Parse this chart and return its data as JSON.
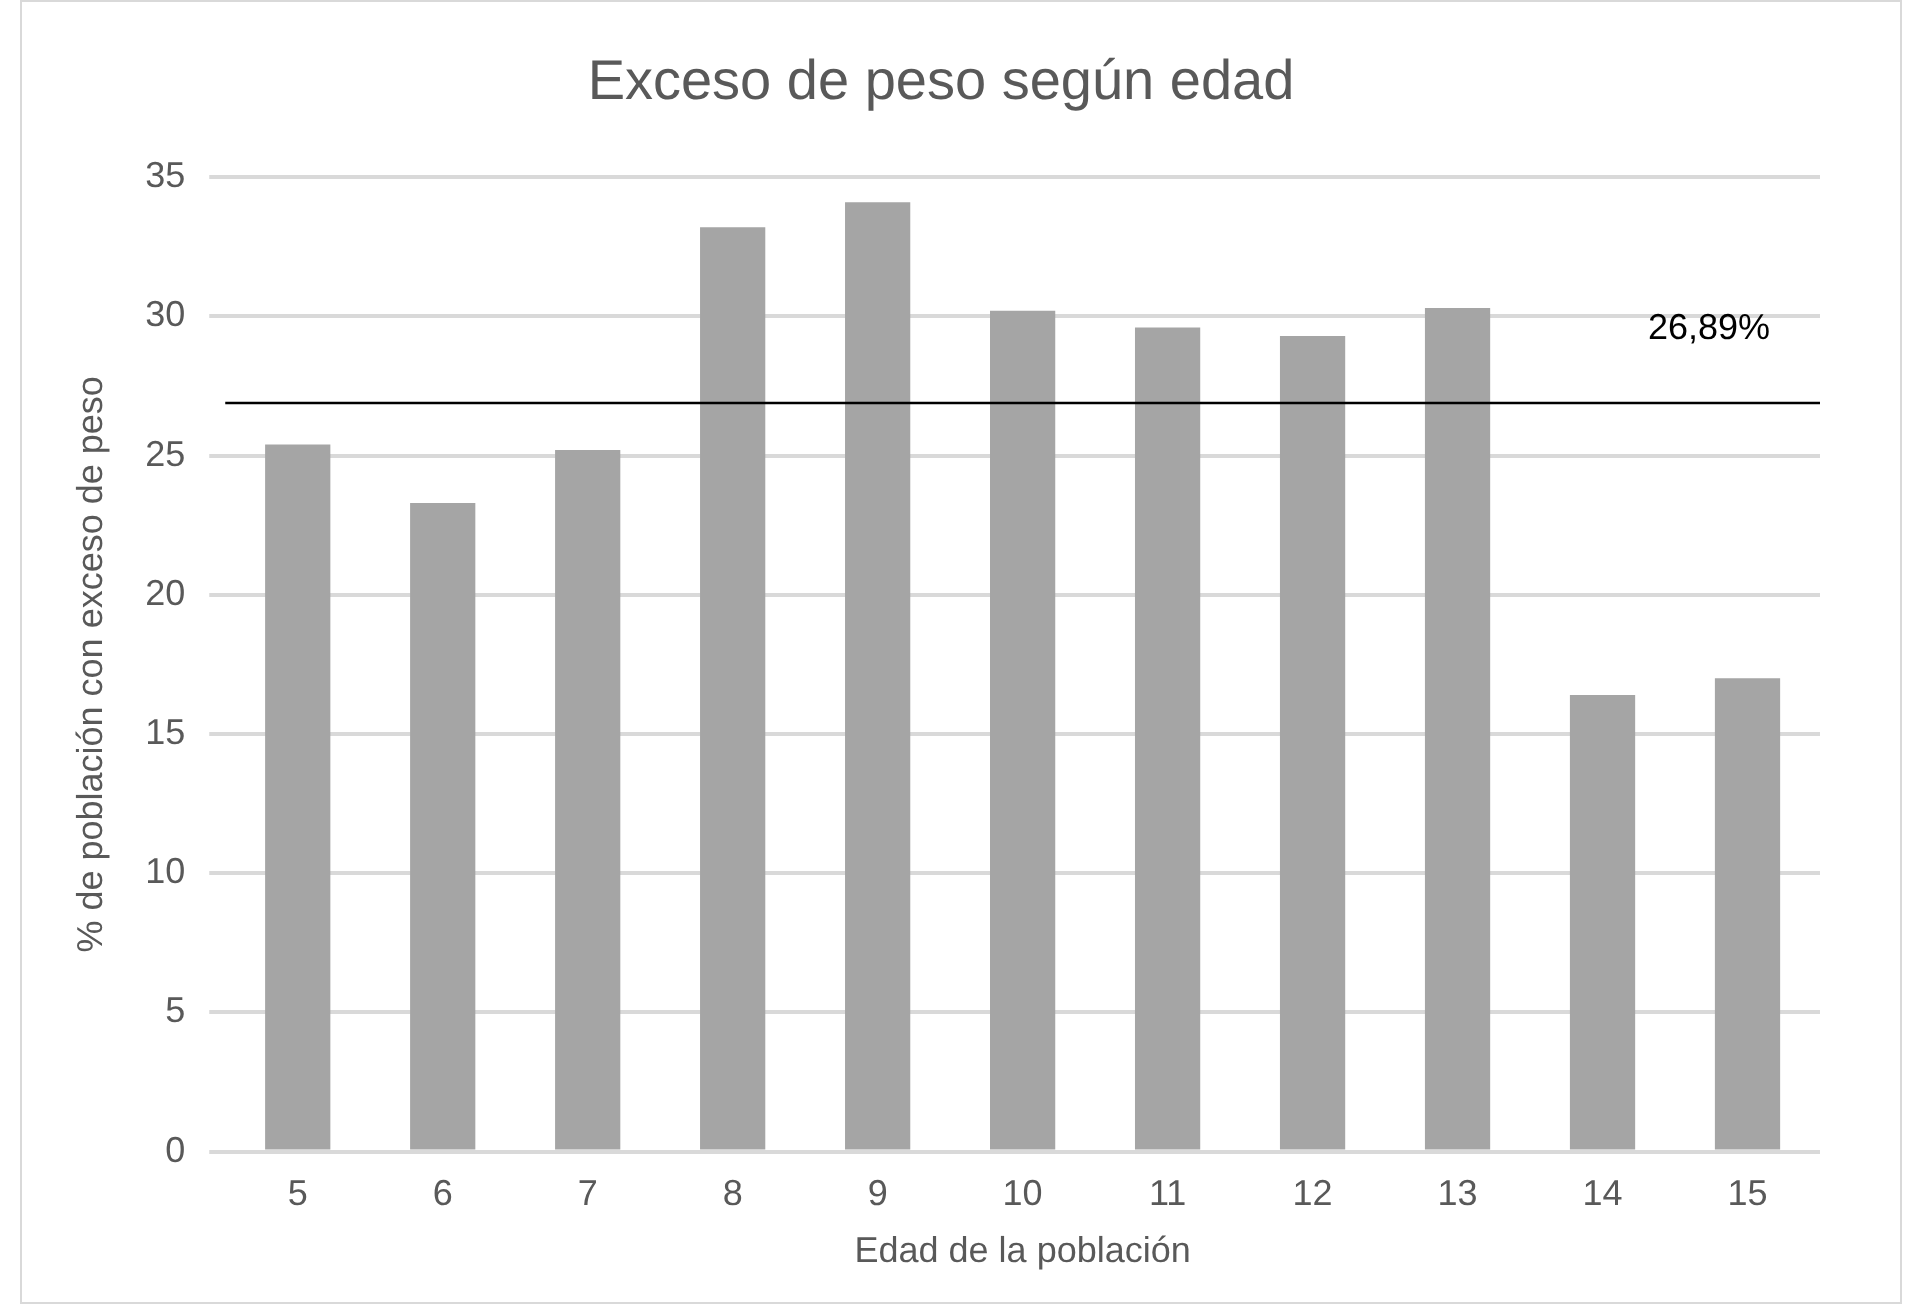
{
  "chart_data": {
    "type": "bar",
    "title": "Exceso de peso según edad",
    "xlabel": "Edad de la población",
    "ylabel": "% de población con exceso de peso",
    "categories": [
      "5",
      "6",
      "7",
      "8",
      "9",
      "10",
      "11",
      "12",
      "13",
      "14",
      "15"
    ],
    "values": [
      25.4,
      23.3,
      25.2,
      33.2,
      34.1,
      30.2,
      29.6,
      29.3,
      30.3,
      16.4,
      17.0
    ],
    "color": "#a5a5a5",
    "ylim": [
      0,
      35
    ],
    "yticks": [
      0,
      5,
      10,
      15,
      20,
      25,
      30,
      35
    ],
    "grid": "y",
    "legend": false,
    "ref_lines": [
      {
        "axis": "y",
        "value": 26.89,
        "label": "26,89%",
        "color": "#000000"
      }
    ]
  }
}
